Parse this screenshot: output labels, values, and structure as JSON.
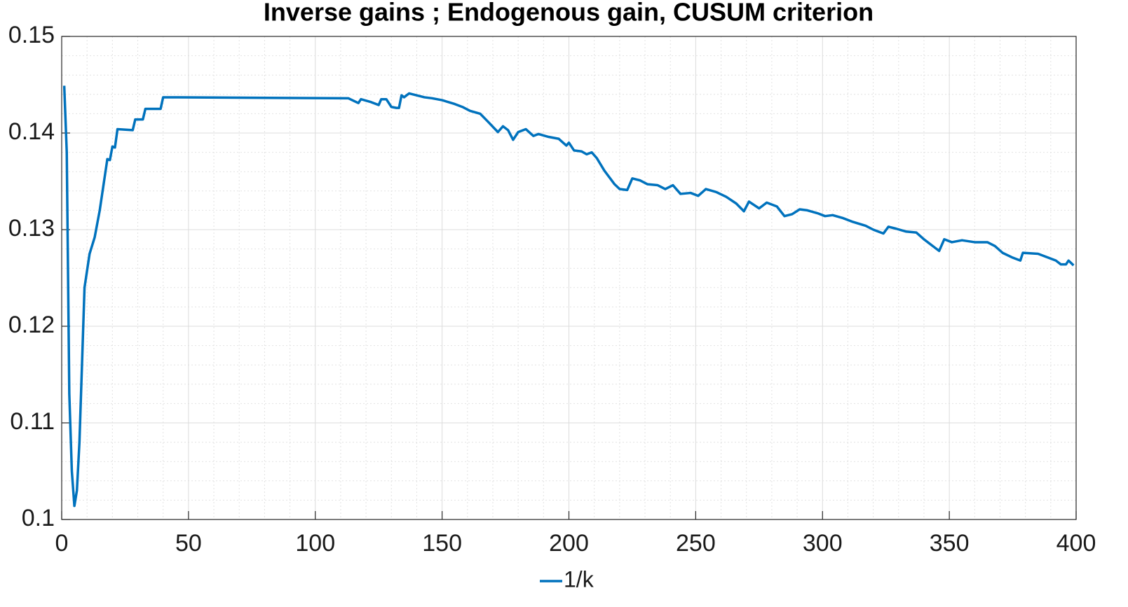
{
  "chart_data": {
    "type": "line",
    "title": "Inverse gains ; Endogenous gain, CUSUM criterion",
    "x": [
      1,
      2,
      3,
      4,
      5,
      6,
      7,
      9,
      11,
      13,
      15,
      18,
      19,
      20,
      21,
      22,
      28,
      29,
      32,
      33,
      39,
      40,
      113,
      117,
      118,
      122,
      125,
      126,
      128,
      130,
      132,
      133,
      134,
      135,
      137,
      140,
      143,
      146,
      150,
      155,
      158,
      161,
      165,
      168,
      172,
      174,
      176,
      178,
      180,
      183,
      186,
      188,
      192,
      196,
      199,
      200,
      202,
      205,
      207,
      209,
      211,
      214,
      218,
      220,
      223,
      225,
      228,
      231,
      235,
      238,
      241,
      244,
      248,
      251,
      254,
      258,
      262,
      266,
      269,
      271,
      275,
      278,
      282,
      285,
      288,
      291,
      294,
      298,
      301,
      304,
      308,
      312,
      317,
      320,
      324,
      326,
      329,
      333,
      337,
      340,
      343,
      346,
      348,
      351,
      355,
      360,
      365,
      368,
      371,
      375,
      378,
      379,
      385,
      388,
      392,
      394,
      396,
      397,
      399
    ],
    "series": [
      {
        "name": "1/k",
        "color": "#0072bd",
        "values": [
          0.1449,
          0.138,
          0.113,
          0.105,
          0.1014,
          0.103,
          0.108,
          0.124,
          0.1275,
          0.1292,
          0.132,
          0.1373,
          0.1372,
          0.1386,
          0.1385,
          0.1404,
          0.1403,
          0.1414,
          0.1414,
          0.1425,
          0.1425,
          0.1437,
          0.1436,
          0.1431,
          0.1435,
          0.1432,
          0.1429,
          0.1435,
          0.1435,
          0.1427,
          0.1426,
          0.1426,
          0.1439,
          0.1437,
          0.1441,
          0.1439,
          0.1437,
          0.1436,
          0.1434,
          0.143,
          0.1427,
          0.1423,
          0.142,
          0.1412,
          0.1401,
          0.1407,
          0.1403,
          0.1393,
          0.1401,
          0.1404,
          0.1397,
          0.1399,
          0.1396,
          0.1394,
          0.1387,
          0.139,
          0.1382,
          0.1381,
          0.1378,
          0.138,
          0.1374,
          0.1361,
          0.1347,
          0.1342,
          0.1341,
          0.1353,
          0.1351,
          0.1347,
          0.1346,
          0.1342,
          0.1346,
          0.1337,
          0.1338,
          0.1335,
          0.1342,
          0.1339,
          0.1334,
          0.1327,
          0.1319,
          0.1329,
          0.1322,
          0.1328,
          0.1324,
          0.1314,
          0.1316,
          0.1321,
          0.132,
          0.1317,
          0.1314,
          0.1315,
          0.1312,
          0.1308,
          0.1304,
          0.13,
          0.1296,
          0.1303,
          0.1301,
          0.1298,
          0.1297,
          0.129,
          0.1284,
          0.1278,
          0.129,
          0.1287,
          0.1289,
          0.1287,
          0.1287,
          0.1283,
          0.1276,
          0.1271,
          0.1268,
          0.1276,
          0.1275,
          0.1272,
          0.1268,
          0.1264,
          0.1264,
          0.1268,
          0.1263
        ]
      }
    ],
    "xlim": [
      0,
      400
    ],
    "xticks": [
      0,
      50,
      100,
      150,
      200,
      250,
      300,
      350,
      400
    ],
    "ylim": [
      0.1,
      0.15
    ],
    "yticks": [
      0.1,
      0.11,
      0.12,
      0.13,
      0.14,
      0.15
    ],
    "grid": true,
    "minor_grid": true,
    "legend": "bottom"
  }
}
